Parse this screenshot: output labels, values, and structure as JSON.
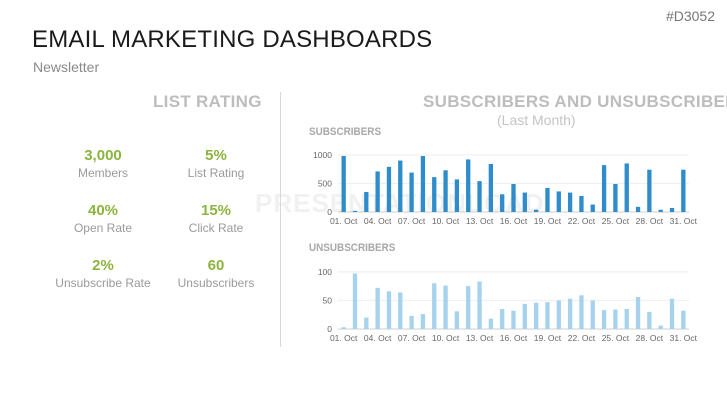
{
  "header": {
    "code": "#D3052",
    "title": "EMAIL MARKETING DASHBOARDS",
    "subtitle": "Newsletter"
  },
  "watermark": "PRESENTATIONLOAD",
  "list_rating": {
    "heading": "LIST RATING",
    "kpis": [
      {
        "value": "3,000",
        "label": "Members"
      },
      {
        "value": "5%",
        "label": "List Rating"
      },
      {
        "value": "40%",
        "label": "Open Rate"
      },
      {
        "value": "15%",
        "label": "Click Rate"
      },
      {
        "value": "2%",
        "label": "Unsubscribe Rate"
      },
      {
        "value": "60",
        "label": "Unsubscribers"
      }
    ]
  },
  "charts_section": {
    "heading": "SUBSCRIBERS AND UNSUBSCRIBERS",
    "subheading": "(Last Month)"
  },
  "colors": {
    "accent_green": "#8cb43f",
    "subscribers_bar": "#2e8ccb",
    "unsubscribers_bar": "#a6d2ee"
  },
  "chart_data": [
    {
      "type": "bar",
      "title": "SUBSCRIBERS",
      "x": [
        1,
        2,
        3,
        4,
        5,
        6,
        7,
        8,
        9,
        10,
        11,
        12,
        13,
        14,
        15,
        16,
        17,
        18,
        19,
        20,
        21,
        22,
        23,
        24,
        25,
        26,
        27,
        28,
        29,
        30,
        31
      ],
      "tick_labels": [
        "01. Oct",
        "04. Oct",
        "07. Oct",
        "10. Oct",
        "13. Oct",
        "16. Oct",
        "19. Oct",
        "22. Oct",
        "25. Oct",
        "28. Oct",
        "31. Oct"
      ],
      "yticks": [
        0,
        500,
        1000
      ],
      "ylim": [
        0,
        1050
      ],
      "values": [
        980,
        20,
        350,
        710,
        790,
        900,
        690,
        980,
        610,
        730,
        570,
        920,
        540,
        840,
        310,
        490,
        340,
        40,
        420,
        360,
        340,
        280,
        130,
        820,
        490,
        850,
        90,
        740,
        40,
        70,
        740
      ]
    },
    {
      "type": "bar",
      "title": "UNSUBSCRIBERS",
      "x": [
        1,
        2,
        3,
        4,
        5,
        6,
        7,
        8,
        9,
        10,
        11,
        12,
        13,
        14,
        15,
        16,
        17,
        18,
        19,
        20,
        21,
        22,
        23,
        24,
        25,
        26,
        27,
        28,
        29,
        30,
        31
      ],
      "tick_labels": [
        "01. Oct",
        "04. Oct",
        "07. Oct",
        "10. Oct",
        "13. Oct",
        "16. Oct",
        "19. Oct",
        "22. Oct",
        "25. Oct",
        "28. Oct",
        "31. Oct"
      ],
      "yticks": [
        0,
        50,
        100
      ],
      "ylim": [
        0,
        105
      ],
      "values": [
        3,
        97,
        20,
        72,
        66,
        64,
        23,
        26,
        80,
        76,
        31,
        75,
        83,
        18,
        35,
        32,
        44,
        46,
        47,
        50,
        53,
        59,
        50,
        33,
        34,
        35,
        56,
        30,
        6,
        53,
        32
      ]
    }
  ]
}
